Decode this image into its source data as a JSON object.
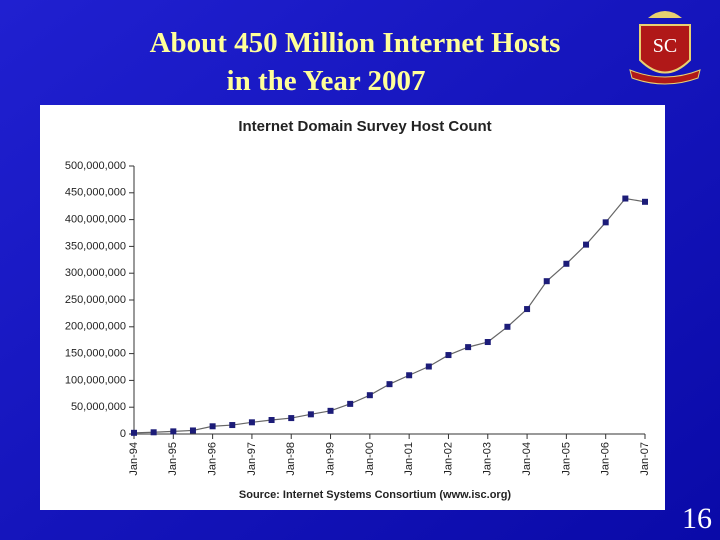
{
  "slide": {
    "title_lines": [
      "About 450 Million Internet Hosts",
      "in the Year 2007"
    ],
    "page_number": "16"
  },
  "chart_data": {
    "type": "line",
    "title": "Internet Domain Survey Host Count",
    "source": "Source: Internet Systems Consortium (www.isc.org)",
    "categories": [
      "Jan-94",
      null,
      "Jan-95",
      null,
      "Jan-96",
      null,
      "Jan-97",
      null,
      "Jan-98",
      null,
      "Jan-99",
      null,
      "Jan-00",
      null,
      "Jan-01",
      null,
      "Jan-02",
      null,
      "Jan-03",
      null,
      "Jan-04",
      null,
      "Jan-05",
      null,
      "Jan-06",
      null,
      "Jan-07"
    ],
    "values": [
      2200000,
      3200000,
      4900000,
      6600000,
      14400000,
      16700000,
      21800000,
      26100000,
      29700000,
      36700000,
      43200000,
      56200000,
      72400000,
      93000000,
      109600000,
      125900000,
      147300000,
      162100000,
      171600000,
      200000000,
      233100000,
      285100000,
      317600000,
      353300000,
      394900000,
      439300000,
      433200000
    ],
    "color": "#1c1c78",
    "line_color": "#666666",
    "ylim": [
      0,
      500000000
    ],
    "yticks": [
      0,
      {
        "value": 50000000,
        "label": "50,000,000"
      },
      {
        "value": 100000000,
        "label": "100,000,000"
      },
      {
        "value": 150000000,
        "label": "150,000,000"
      },
      {
        "value": 200000000,
        "label": "200,000,000"
      },
      {
        "value": 250000000,
        "label": "250,000,000"
      },
      {
        "value": 300000000,
        "label": "300,000,000"
      },
      {
        "value": 350000000,
        "label": "350,000,000"
      },
      {
        "value": 400000000,
        "label": "400,000,000"
      },
      {
        "value": 450000000,
        "label": "450,000,000"
      },
      {
        "value": 500000000,
        "label": "500,000,000"
      }
    ]
  }
}
